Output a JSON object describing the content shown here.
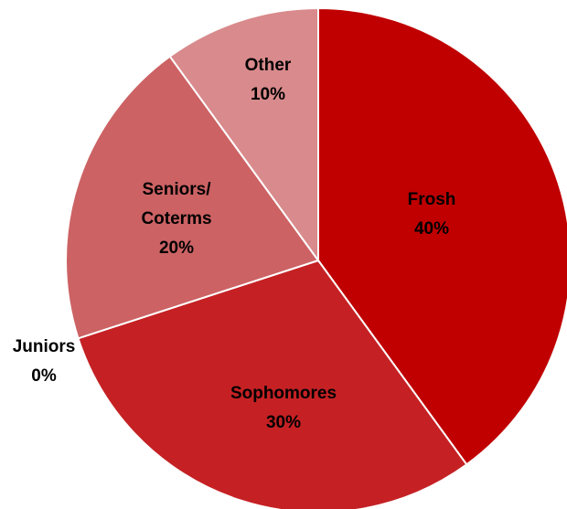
{
  "chart_data": {
    "type": "pie",
    "slices": [
      {
        "name": "Frosh",
        "label_lines": [
          "Frosh"
        ],
        "percent_label": "40%",
        "value": 40,
        "color": "#c00000"
      },
      {
        "name": "Sophomores",
        "label_lines": [
          "Sophomores"
        ],
        "percent_label": "30%",
        "value": 30,
        "color": "#c52124"
      },
      {
        "name": "Juniors",
        "label_lines": [
          "Juniors"
        ],
        "percent_label": "0%",
        "value": 0,
        "color": "#c94245"
      },
      {
        "name": "Seniors/Coterms",
        "label_lines": [
          "Seniors/",
          "Coterms"
        ],
        "percent_label": "20%",
        "value": 20,
        "color": "#cc6264"
      },
      {
        "name": "Other",
        "label_lines": [
          "Other"
        ],
        "percent_label": "10%",
        "value": 10,
        "color": "#d98a8c"
      }
    ]
  }
}
